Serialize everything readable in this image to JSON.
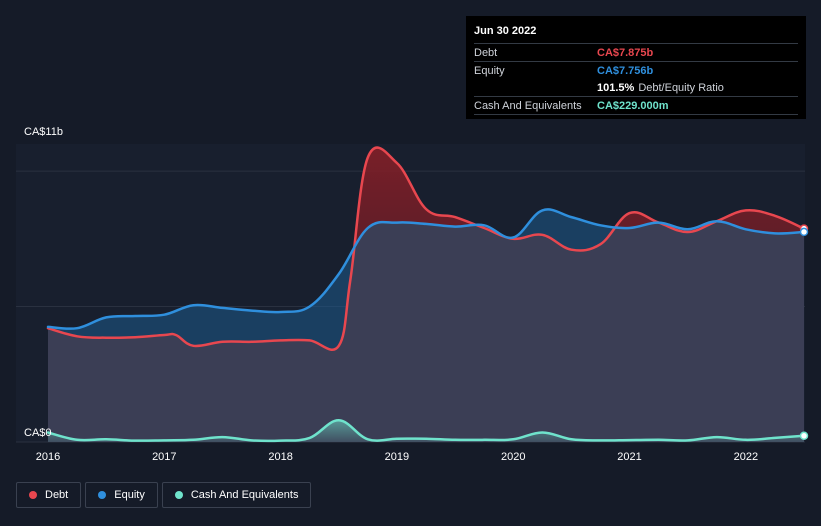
{
  "chart_data": {
    "type": "area",
    "y_top_label": "CA$11b",
    "y_bottom_label": "CA$0",
    "ylim": [
      0,
      11
    ],
    "xlim": [
      2016.0,
      2022.5
    ],
    "x_ticks": [
      "2016",
      "2017",
      "2018",
      "2019",
      "2020",
      "2021",
      "2022"
    ],
    "colors": {
      "debt": "#e8474f",
      "equity": "#2f8fdd",
      "cash": "#6fe3cc"
    },
    "series": [
      {
        "name": "Debt",
        "key": "debt",
        "points": [
          [
            2016.0,
            4.2
          ],
          [
            2016.25,
            3.9
          ],
          [
            2016.5,
            3.85
          ],
          [
            2016.75,
            3.87
          ],
          [
            2017.0,
            3.95
          ],
          [
            2017.1,
            3.95
          ],
          [
            2017.25,
            3.55
          ],
          [
            2017.5,
            3.7
          ],
          [
            2017.75,
            3.7
          ],
          [
            2018.0,
            3.75
          ],
          [
            2018.25,
            3.75
          ],
          [
            2018.5,
            3.55
          ],
          [
            2018.6,
            6.0
          ],
          [
            2018.75,
            10.5
          ],
          [
            2019.0,
            10.3
          ],
          [
            2019.25,
            8.6
          ],
          [
            2019.5,
            8.3
          ],
          [
            2019.75,
            7.9
          ],
          [
            2020.0,
            7.5
          ],
          [
            2020.25,
            7.65
          ],
          [
            2020.5,
            7.1
          ],
          [
            2020.75,
            7.3
          ],
          [
            2021.0,
            8.45
          ],
          [
            2021.25,
            8.1
          ],
          [
            2021.5,
            7.75
          ],
          [
            2021.75,
            8.15
          ],
          [
            2022.0,
            8.55
          ],
          [
            2022.25,
            8.35
          ],
          [
            2022.5,
            7.875
          ]
        ]
      },
      {
        "name": "Equity",
        "key": "equity",
        "points": [
          [
            2016.0,
            4.25
          ],
          [
            2016.25,
            4.2
          ],
          [
            2016.5,
            4.6
          ],
          [
            2016.75,
            4.65
          ],
          [
            2017.0,
            4.7
          ],
          [
            2017.25,
            5.05
          ],
          [
            2017.5,
            4.95
          ],
          [
            2017.75,
            4.85
          ],
          [
            2018.0,
            4.8
          ],
          [
            2018.25,
            5.0
          ],
          [
            2018.5,
            6.2
          ],
          [
            2018.75,
            7.9
          ],
          [
            2019.0,
            8.1
          ],
          [
            2019.25,
            8.05
          ],
          [
            2019.5,
            7.95
          ],
          [
            2019.75,
            8.0
          ],
          [
            2020.0,
            7.55
          ],
          [
            2020.25,
            8.55
          ],
          [
            2020.5,
            8.3
          ],
          [
            2020.75,
            8.0
          ],
          [
            2021.0,
            7.9
          ],
          [
            2021.25,
            8.1
          ],
          [
            2021.5,
            7.85
          ],
          [
            2021.75,
            8.15
          ],
          [
            2022.0,
            7.85
          ],
          [
            2022.25,
            7.7
          ],
          [
            2022.5,
            7.756
          ]
        ]
      },
      {
        "name": "Cash And Equivalents",
        "key": "cash",
        "points": [
          [
            2016.0,
            0.35
          ],
          [
            2016.25,
            0.08
          ],
          [
            2016.5,
            0.1
          ],
          [
            2016.75,
            0.05
          ],
          [
            2017.0,
            0.06
          ],
          [
            2017.25,
            0.08
          ],
          [
            2017.5,
            0.18
          ],
          [
            2017.75,
            0.06
          ],
          [
            2018.0,
            0.05
          ],
          [
            2018.25,
            0.15
          ],
          [
            2018.5,
            0.8
          ],
          [
            2018.75,
            0.1
          ],
          [
            2019.0,
            0.12
          ],
          [
            2019.25,
            0.12
          ],
          [
            2019.5,
            0.08
          ],
          [
            2019.75,
            0.08
          ],
          [
            2020.0,
            0.1
          ],
          [
            2020.25,
            0.35
          ],
          [
            2020.5,
            0.1
          ],
          [
            2020.75,
            0.06
          ],
          [
            2021.0,
            0.07
          ],
          [
            2021.25,
            0.08
          ],
          [
            2021.5,
            0.06
          ],
          [
            2021.75,
            0.18
          ],
          [
            2022.0,
            0.08
          ],
          [
            2022.25,
            0.15
          ],
          [
            2022.5,
            0.229
          ]
        ]
      }
    ],
    "tooltip": {
      "date": "Jun 30 2022",
      "rows": [
        {
          "label": "Debt",
          "value": "CA$7.875b",
          "color": "#e8474f"
        },
        {
          "label": "Equity",
          "value": "CA$7.756b",
          "color": "#2f8fdd"
        }
      ],
      "ratio_value": "101.5%",
      "ratio_label": "Debt/Equity Ratio",
      "cash_label": "Cash And Equivalents",
      "cash_value": "CA$229.000m",
      "cash_color": "#6fe3cc"
    },
    "legend": [
      {
        "label": "Debt",
        "color": "#e8474f"
      },
      {
        "label": "Equity",
        "color": "#2f8fdd"
      },
      {
        "label": "Cash And Equivalents",
        "color": "#6fe3cc"
      }
    ]
  }
}
